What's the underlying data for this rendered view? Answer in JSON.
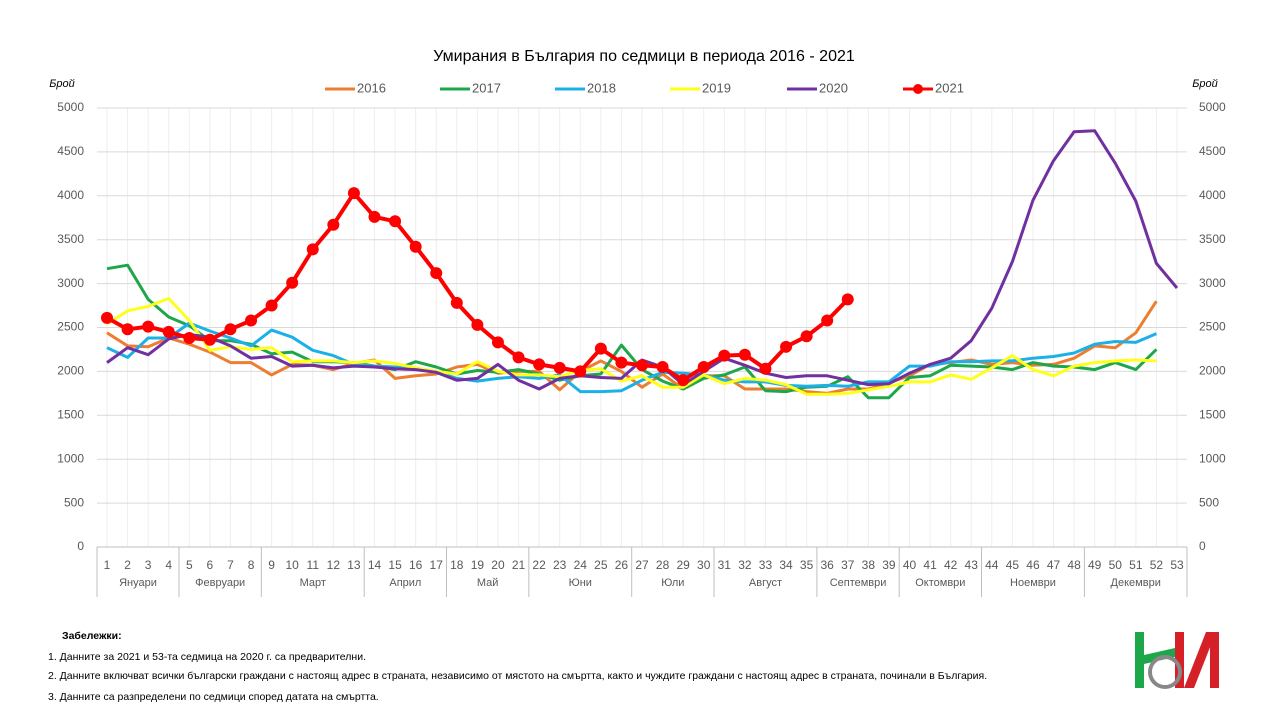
{
  "chart_data": {
    "type": "line",
    "title": "Умирания в България по седмици в периода 2016 - 2021",
    "ylabel": "Брой",
    "y2label": "Брой",
    "categories": [
      1,
      2,
      3,
      4,
      5,
      6,
      7,
      8,
      9,
      10,
      11,
      12,
      13,
      14,
      15,
      16,
      17,
      18,
      19,
      20,
      21,
      22,
      23,
      24,
      25,
      26,
      27,
      28,
      29,
      30,
      31,
      32,
      33,
      34,
      35,
      36,
      37,
      38,
      39,
      40,
      41,
      42,
      43,
      44,
      45,
      46,
      47,
      48,
      49,
      50,
      51,
      52,
      53
    ],
    "month_groups": [
      {
        "label": "Януари",
        "first": 1,
        "last": 4
      },
      {
        "label": "Февруари",
        "first": 5,
        "last": 8
      },
      {
        "label": "Март",
        "first": 9,
        "last": 13
      },
      {
        "label": "Април",
        "first": 14,
        "last": 17
      },
      {
        "label": "Май",
        "first": 18,
        "last": 21
      },
      {
        "label": "Юни",
        "first": 22,
        "last": 26
      },
      {
        "label": "Юли",
        "first": 27,
        "last": 30
      },
      {
        "label": "Август",
        "first": 31,
        "last": 35
      },
      {
        "label": "Септември",
        "first": 36,
        "last": 39
      },
      {
        "label": "Октомври",
        "first": 40,
        "last": 43
      },
      {
        "label": "Ноември",
        "first": 44,
        "last": 48
      },
      {
        "label": "Декември",
        "first": 49,
        "last": 53
      }
    ],
    "ylim": [
      0,
      5000
    ],
    "yticks": [
      0,
      500,
      1000,
      1500,
      2000,
      2500,
      3000,
      3500,
      4000,
      4500,
      5000
    ],
    "y2lim": [
      0,
      5000
    ],
    "y2ticks": [
      0,
      500,
      1000,
      1500,
      2000,
      2500,
      3000,
      3500,
      4000,
      4500,
      5000
    ],
    "grid": true,
    "legend": "top",
    "series": [
      {
        "name": "2016",
        "color": "#ed7d31",
        "values": [
          2440,
          2290,
          2280,
          2380,
          2310,
          2220,
          2100,
          2100,
          1960,
          2080,
          2070,
          2020,
          2090,
          2130,
          1920,
          1950,
          1970,
          2050,
          2080,
          1980,
          2000,
          2000,
          1790,
          2000,
          2120,
          2000,
          1820,
          1970,
          1800,
          1950,
          1950,
          1800,
          1800,
          1800,
          1770,
          1750,
          1800,
          1800,
          1870,
          1950,
          2080,
          2100,
          2130,
          2080,
          2100,
          2070,
          2080,
          2150,
          2290,
          2270,
          2440,
          2800,
          null
        ]
      },
      {
        "name": "2017",
        "color": "#1ea64b",
        "values": [
          3170,
          3210,
          2820,
          2620,
          2520,
          2350,
          2350,
          2310,
          2200,
          2220,
          2110,
          2110,
          2100,
          2060,
          2020,
          2110,
          2050,
          1970,
          2010,
          1990,
          2020,
          1970,
          1900,
          1950,
          1970,
          2300,
          2020,
          1890,
          1800,
          1920,
          1960,
          2050,
          1780,
          1770,
          1820,
          1830,
          1940,
          1700,
          1700,
          1930,
          1950,
          2070,
          2060,
          2050,
          2020,
          2100,
          2060,
          2050,
          2020,
          2100,
          2020,
          2250,
          null
        ]
      },
      {
        "name": "2018",
        "color": "#1cb0e8",
        "values": [
          2270,
          2160,
          2380,
          2380,
          2550,
          2460,
          2380,
          2290,
          2470,
          2390,
          2240,
          2180,
          2080,
          2060,
          2050,
          2030,
          2000,
          1920,
          1890,
          1920,
          1940,
          1920,
          1960,
          1770,
          1770,
          1780,
          1900,
          1990,
          1980,
          1960,
          1900,
          1880,
          1880,
          1840,
          1830,
          1840,
          1830,
          1880,
          1880,
          2060,
          2060,
          2110,
          2110,
          2120,
          2120,
          2150,
          2170,
          2210,
          2310,
          2340,
          2330,
          2430,
          null
        ]
      },
      {
        "name": "2019",
        "color": "#ffff1a",
        "values": [
          2540,
          2690,
          2740,
          2830,
          2580,
          2240,
          2280,
          2250,
          2270,
          2110,
          2120,
          2120,
          2100,
          2120,
          2090,
          2040,
          2000,
          1970,
          2110,
          2000,
          1960,
          1960,
          1940,
          2010,
          2030,
          1890,
          1950,
          1820,
          1820,
          1960,
          1860,
          1920,
          1900,
          1850,
          1740,
          1740,
          1750,
          1790,
          1830,
          1880,
          1880,
          1960,
          1910,
          2040,
          2180,
          2020,
          1950,
          2060,
          2100,
          2120,
          2130,
          2120,
          null
        ]
      },
      {
        "name": "2020",
        "color": "#7030a0",
        "values": [
          2100,
          2270,
          2190,
          2370,
          2420,
          2390,
          2290,
          2150,
          2170,
          2060,
          2070,
          2040,
          2060,
          2050,
          2030,
          2020,
          1990,
          1900,
          1920,
          2080,
          1900,
          1800,
          1920,
          1950,
          1930,
          1920,
          2130,
          2050,
          1850,
          2000,
          2150,
          2070,
          1980,
          1930,
          1950,
          1950,
          1900,
          1850,
          1860,
          1980,
          2080,
          2150,
          2350,
          2720,
          3250,
          3950,
          4400,
          4730,
          4740,
          4370,
          3940,
          3230,
          2950
        ]
      },
      {
        "name": "2021",
        "color": "#ff0000",
        "markers": true,
        "values": [
          2610,
          2480,
          2510,
          2450,
          2380,
          2360,
          2480,
          2580,
          2750,
          3010,
          3390,
          3670,
          4030,
          3760,
          3710,
          3420,
          3120,
          2780,
          2530,
          2330,
          2160,
          2080,
          2040,
          2000,
          2260,
          2100,
          2070,
          2050,
          1900,
          2050,
          2180,
          2190,
          2030,
          2280,
          2400,
          2580,
          2820,
          null,
          null,
          null,
          null,
          null,
          null,
          null,
          null,
          null,
          null,
          null,
          null,
          null,
          null,
          null,
          null
        ]
      }
    ]
  },
  "notes": {
    "heading": "Забележки:",
    "items": [
      "1. Данните за 2021 и 53-та седмица на 2020 г. са предварителни.",
      "2. Данните включват всички български граждани с настоящ адрес в страната, независимо от мястото на смъртта, както и чуждите граждани с настоящ адрес в страната, починали в България.",
      "3. Данните са разпределени по седмици според датата на смъртта."
    ]
  }
}
